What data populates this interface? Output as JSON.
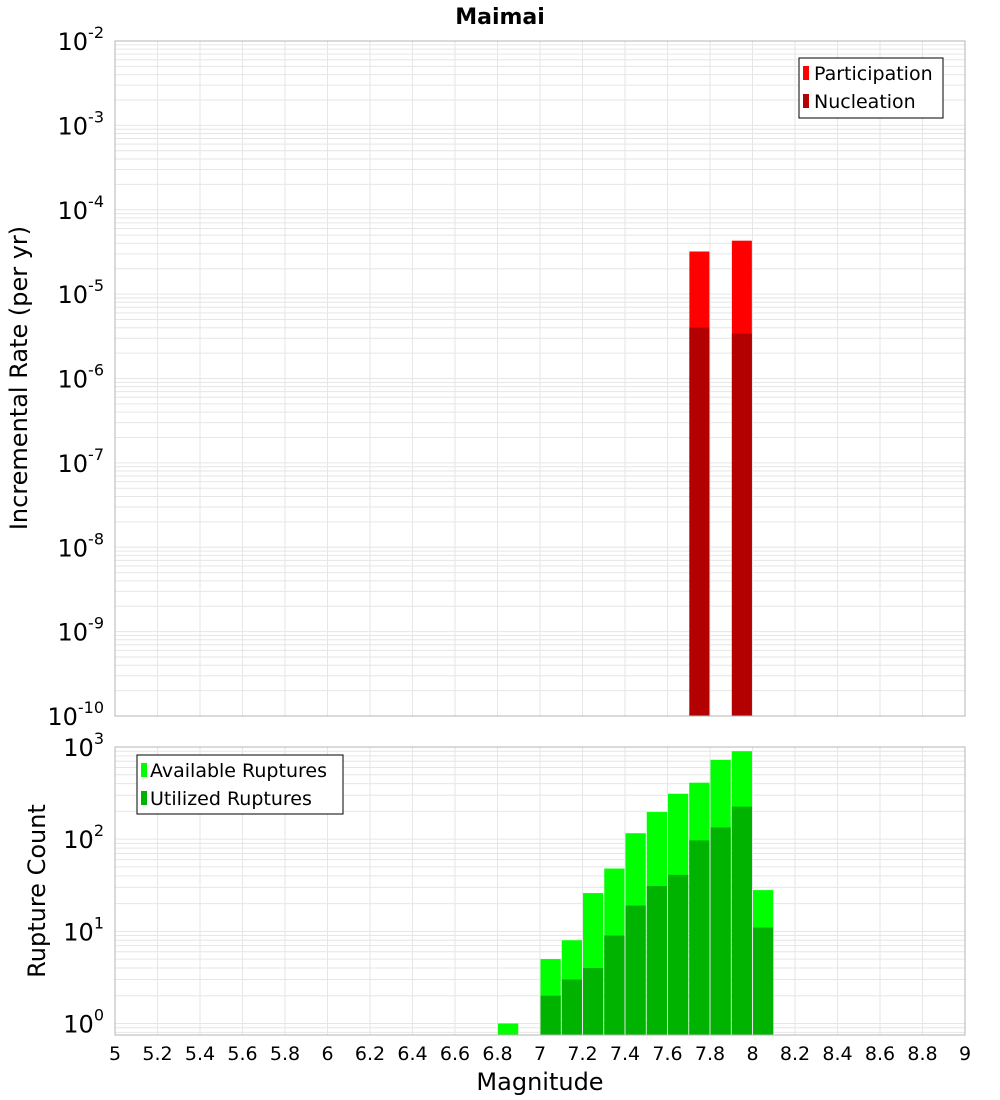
{
  "title": "Maimai",
  "colors": {
    "participation": "#ff0000",
    "nucleation": "#b30000",
    "available": "#00ff00",
    "utilized": "#00b300",
    "grid": "#e6e6e6",
    "frame": "#b4b4b4"
  },
  "chart_data": [
    {
      "type": "bar",
      "ylabel": "Incremental Rate (per yr)",
      "yscale": "log",
      "ylim": [
        1e-10,
        0.01
      ],
      "y_tick_bases": [
        "10",
        "10",
        "10",
        "10",
        "10",
        "10",
        "10",
        "10",
        "10"
      ],
      "y_tick_exps": [
        "-10",
        "-9",
        "-8",
        "-7",
        "-6",
        "-5",
        "-4",
        "-3",
        "-2"
      ],
      "grid": true,
      "legend_position": "top-right",
      "series": [
        {
          "name": "Participation",
          "x": [
            7.75,
            7.95
          ],
          "values": [
            3.2e-05,
            4.3e-05
          ]
        },
        {
          "name": "Nucleation",
          "x": [
            7.75,
            7.95
          ],
          "values": [
            4e-06,
            3.4e-06
          ]
        }
      ]
    },
    {
      "type": "bar",
      "ylabel": "Rupture Count",
      "xlabel": "Magnitude",
      "yscale": "log",
      "ylim": [
        0.75,
        1000
      ],
      "y_tick_bases": [
        "10",
        "10",
        "10",
        "10"
      ],
      "y_tick_exps": [
        "0",
        "1",
        "2",
        "3"
      ],
      "xlim": [
        5,
        9
      ],
      "x_ticks": [
        "5",
        "5.2",
        "5.4",
        "5.6",
        "5.8",
        "6",
        "6.2",
        "6.4",
        "6.6",
        "6.8",
        "7",
        "7.2",
        "7.4",
        "7.6",
        "7.8",
        "8",
        "8.2",
        "8.4",
        "8.6",
        "8.8",
        "9"
      ],
      "grid": true,
      "legend_position": "top-left",
      "bin_width": 0.1,
      "series": [
        {
          "name": "Available Ruptures",
          "x": [
            6.85,
            7.05,
            7.15,
            7.25,
            7.35,
            7.45,
            7.55,
            7.65,
            7.75,
            7.85,
            7.95,
            8.05
          ],
          "values": [
            1,
            5,
            8,
            26,
            48,
            116,
            197,
            311,
            410,
            726,
            900,
            28
          ]
        },
        {
          "name": "Utilized Ruptures",
          "x": [
            7.05,
            7.15,
            7.25,
            7.35,
            7.45,
            7.55,
            7.65,
            7.75,
            7.85,
            7.95,
            8.05
          ],
          "values": [
            2,
            3,
            4,
            9,
            19,
            31,
            41,
            97,
            134,
            225,
            11
          ]
        }
      ]
    }
  ]
}
